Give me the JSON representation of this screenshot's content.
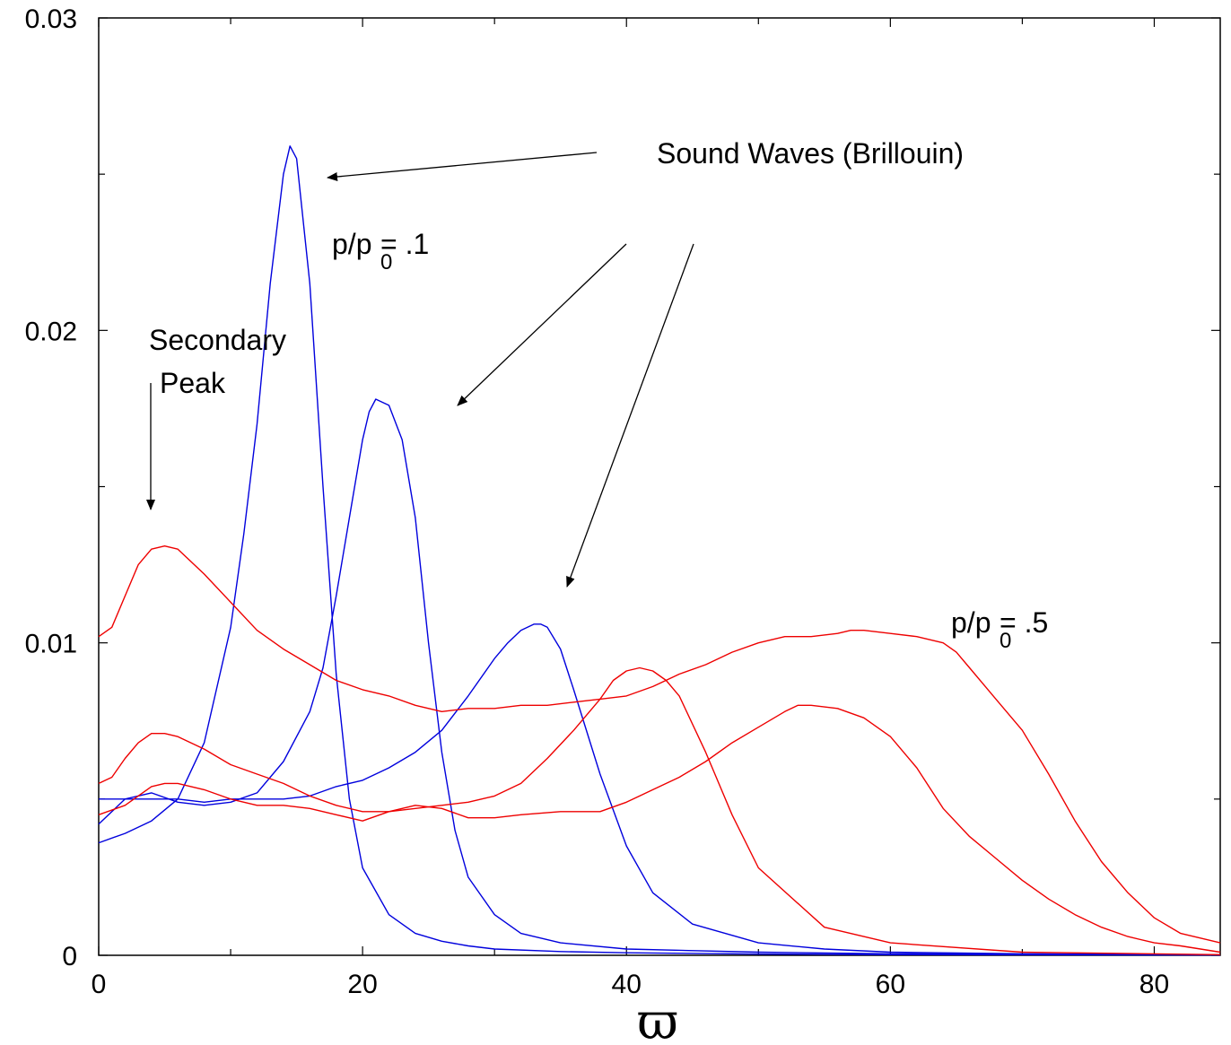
{
  "chart_data": {
    "type": "line",
    "xlabel": "ϖ",
    "ylabel": "",
    "xlim": [
      0,
      85
    ],
    "ylim": [
      0,
      0.03
    ],
    "x_ticks": [
      "0",
      "20",
      "40",
      "60",
      "80"
    ],
    "y_ticks": [
      "0",
      "0.01",
      "0.02",
      "0.03"
    ],
    "grid": false,
    "colors": {
      "blue": "#0000dd",
      "red": "#ee0000"
    },
    "series": [
      {
        "color": "blue",
        "x": [
          0,
          2,
          4,
          6,
          8,
          10,
          11,
          12,
          13,
          14,
          14.5,
          15,
          16,
          17,
          18,
          19,
          20,
          22,
          24,
          26,
          28,
          30,
          35,
          40,
          50,
          60,
          85
        ],
        "y": [
          0.0036,
          0.0039,
          0.0043,
          0.005,
          0.0068,
          0.0105,
          0.0135,
          0.017,
          0.0215,
          0.025,
          0.0259,
          0.0255,
          0.0215,
          0.015,
          0.009,
          0.005,
          0.0028,
          0.0013,
          0.0007,
          0.00045,
          0.0003,
          0.0002,
          0.00012,
          8e-05,
          4e-05,
          2e-05,
          1e-05
        ]
      },
      {
        "color": "blue",
        "x": [
          0,
          2,
          4,
          6,
          8,
          10,
          12,
          14,
          16,
          17,
          18,
          19,
          20,
          20.5,
          21,
          22,
          23,
          24,
          25,
          26,
          27,
          28,
          30,
          32,
          35,
          40,
          50,
          60,
          85
        ],
        "y": [
          0.0042,
          0.005,
          0.0052,
          0.0049,
          0.0048,
          0.0049,
          0.0052,
          0.0062,
          0.0078,
          0.0092,
          0.0115,
          0.014,
          0.0165,
          0.0174,
          0.0178,
          0.0176,
          0.0165,
          0.014,
          0.01,
          0.0065,
          0.004,
          0.0025,
          0.0013,
          0.0007,
          0.0004,
          0.0002,
          0.0001,
          5e-05,
          2e-05
        ]
      },
      {
        "color": "blue",
        "x": [
          0,
          2,
          4,
          6,
          8,
          10,
          12,
          14,
          16,
          18,
          20,
          22,
          24,
          26,
          28,
          30,
          31,
          32,
          33,
          33.5,
          34,
          35,
          36,
          38,
          40,
          42,
          45,
          50,
          55,
          60,
          70,
          85
        ],
        "y": [
          0.005,
          0.005,
          0.005,
          0.005,
          0.0049,
          0.005,
          0.005,
          0.005,
          0.0051,
          0.0054,
          0.0056,
          0.006,
          0.0065,
          0.0072,
          0.0083,
          0.0095,
          0.01,
          0.0104,
          0.0106,
          0.0106,
          0.0105,
          0.0098,
          0.0085,
          0.0058,
          0.0035,
          0.002,
          0.001,
          0.0004,
          0.0002,
          0.0001,
          5e-05,
          2e-05
        ]
      },
      {
        "color": "red",
        "x": [
          0,
          1,
          2,
          3,
          4,
          5,
          6,
          8,
          10,
          12,
          14,
          16,
          18,
          20,
          22,
          24,
          26,
          28,
          30,
          32,
          34,
          36,
          38,
          40,
          42,
          44,
          46,
          48,
          50,
          52,
          54,
          56,
          57,
          58,
          60,
          62,
          64,
          65,
          66,
          68,
          70,
          72,
          74,
          76,
          78,
          80,
          82,
          85
        ],
        "y": [
          0.0102,
          0.0105,
          0.0115,
          0.0125,
          0.013,
          0.0131,
          0.013,
          0.0122,
          0.0113,
          0.0104,
          0.0098,
          0.0093,
          0.0088,
          0.0085,
          0.0083,
          0.008,
          0.0078,
          0.0079,
          0.0079,
          0.008,
          0.008,
          0.0081,
          0.0082,
          0.0083,
          0.0086,
          0.009,
          0.0093,
          0.0097,
          0.01,
          0.0102,
          0.0102,
          0.0103,
          0.0104,
          0.0104,
          0.0103,
          0.0102,
          0.01,
          0.0097,
          0.0092,
          0.0082,
          0.0072,
          0.0058,
          0.0043,
          0.003,
          0.002,
          0.0012,
          0.0007,
          0.0004
        ]
      },
      {
        "color": "red",
        "x": [
          0,
          1,
          2,
          3,
          4,
          5,
          6,
          8,
          10,
          12,
          14,
          16,
          18,
          20,
          22,
          24,
          26,
          28,
          30,
          32,
          34,
          36,
          38,
          39,
          40,
          41,
          42,
          43,
          44,
          46,
          48,
          50,
          55,
          60,
          70,
          85
        ],
        "y": [
          0.0055,
          0.0057,
          0.0063,
          0.0068,
          0.0071,
          0.0071,
          0.007,
          0.0066,
          0.0061,
          0.0058,
          0.0055,
          0.0051,
          0.0048,
          0.0046,
          0.0046,
          0.0047,
          0.0048,
          0.0049,
          0.0051,
          0.0055,
          0.0063,
          0.0072,
          0.0082,
          0.0088,
          0.0091,
          0.0092,
          0.0091,
          0.0088,
          0.0083,
          0.0065,
          0.0045,
          0.0028,
          0.0009,
          0.0004,
          0.0001,
          2e-05
        ]
      },
      {
        "color": "red",
        "x": [
          0,
          2,
          4,
          5,
          6,
          8,
          10,
          12,
          14,
          16,
          18,
          20,
          22,
          24,
          26,
          28,
          30,
          32,
          35,
          38,
          40,
          42,
          44,
          46,
          48,
          50,
          52,
          53,
          54,
          56,
          58,
          60,
          62,
          64,
          66,
          68,
          70,
          72,
          74,
          76,
          78,
          80,
          82,
          85
        ],
        "y": [
          0.0045,
          0.0048,
          0.0054,
          0.0055,
          0.0055,
          0.0053,
          0.005,
          0.0048,
          0.0048,
          0.0047,
          0.0045,
          0.0043,
          0.0046,
          0.0048,
          0.0047,
          0.0044,
          0.0044,
          0.0045,
          0.0046,
          0.0046,
          0.0049,
          0.0053,
          0.0057,
          0.0062,
          0.0068,
          0.0073,
          0.0078,
          0.008,
          0.008,
          0.0079,
          0.0076,
          0.007,
          0.006,
          0.0047,
          0.0038,
          0.0031,
          0.0024,
          0.0018,
          0.0013,
          0.0009,
          0.0006,
          0.0004,
          0.0003,
          0.0001
        ]
      }
    ],
    "annotations": {
      "sound_waves": "Sound Waves (Brillouin)",
      "secondary": "Secondary",
      "peak": "Peak",
      "ratio_low_text": "p/p",
      "ratio_low_sub": "0",
      "ratio_low_value": "= .1",
      "ratio_high_text": "p/p",
      "ratio_high_sub": "0",
      "ratio_high_value": "= .5"
    }
  }
}
